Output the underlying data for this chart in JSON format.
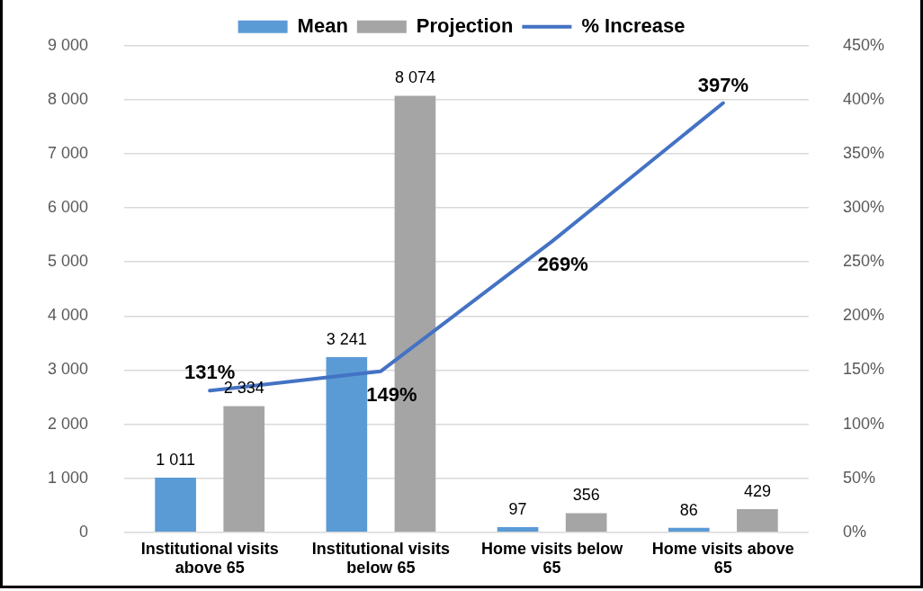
{
  "chart_data": {
    "type": "bar",
    "categories": [
      "Institutional visits above 65",
      "Institutional visits below 65",
      "Home visits below 65",
      "Home visits above 65"
    ],
    "series": [
      {
        "name": "Mean",
        "color": "#5b9bd5",
        "values": [
          1011,
          3241,
          97,
          86
        ],
        "value_labels": [
          "1 011",
          "3 241",
          "97",
          "86"
        ]
      },
      {
        "name": "Projection",
        "color": "#a5a5a5",
        "values": [
          2334,
          8074,
          356,
          429
        ],
        "value_labels": [
          "2 334",
          "8 074",
          "356",
          "429"
        ]
      },
      {
        "name": "% Increase",
        "type": "line",
        "axis": "y2",
        "color": "#4472c4",
        "values": [
          131,
          149,
          269,
          397
        ],
        "value_labels": [
          "131%",
          "149%",
          "269%",
          "397%"
        ],
        "marker": "none"
      }
    ],
    "ylim": [
      0,
      9000
    ],
    "yticks": [
      {
        "value": 0,
        "label": "0"
      },
      {
        "value": 1000,
        "label": "1 000"
      },
      {
        "value": 2000,
        "label": "2 000"
      },
      {
        "value": 3000,
        "label": "3 000"
      },
      {
        "value": 4000,
        "label": "4 000"
      },
      {
        "value": 5000,
        "label": "5 000"
      },
      {
        "value": 6000,
        "label": "6 000"
      },
      {
        "value": 7000,
        "label": "7 000"
      },
      {
        "value": 8000,
        "label": "8 000"
      },
      {
        "value": 9000,
        "label": "9 000"
      }
    ],
    "y2lim": [
      0,
      450
    ],
    "y2ticks": [
      {
        "value": 0,
        "label": "0%"
      },
      {
        "value": 50,
        "label": "50%"
      },
      {
        "value": 100,
        "label": "100%"
      },
      {
        "value": 150,
        "label": "150%"
      },
      {
        "value": 200,
        "label": "200%"
      },
      {
        "value": 250,
        "label": "250%"
      },
      {
        "value": 300,
        "label": "300%"
      },
      {
        "value": 350,
        "label": "350%"
      },
      {
        "value": 400,
        "label": "400%"
      },
      {
        "value": 450,
        "label": "450%"
      }
    ],
    "grid": "y",
    "legend": "top"
  }
}
